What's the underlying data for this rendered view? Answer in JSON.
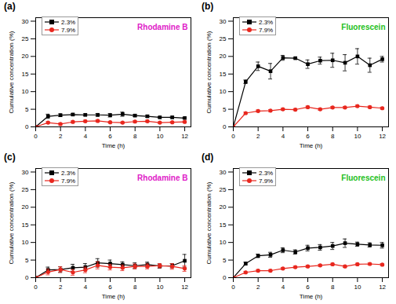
{
  "chart_data": [
    {
      "type": "line",
      "title": "(a)",
      "annotations": [
        {
          "text": "Rhodamine B",
          "color": "#e020c8"
        }
      ],
      "x_label": "Time (h)",
      "y_label": "Cumulative concentration (%)",
      "x": [
        0,
        1,
        2,
        3,
        4,
        5,
        6,
        7,
        8,
        9,
        10,
        11,
        12
      ],
      "xlim": [
        0,
        12.5
      ],
      "xticks": [
        0,
        2,
        4,
        6,
        8,
        10,
        12
      ],
      "ylim": [
        0,
        31
      ],
      "yticks": [
        0,
        5,
        10,
        15,
        20,
        25,
        30
      ],
      "legend": "top-left",
      "series": [
        {
          "name": "2.3%",
          "color": "#000000",
          "marker": "square",
          "values": [
            0,
            3.0,
            3.3,
            3.5,
            3.4,
            3.4,
            3.3,
            3.6,
            3.2,
            3.0,
            2.7,
            2.7,
            2.5
          ],
          "errors": [
            0,
            0.6,
            0.4,
            0.3,
            0.3,
            0.4,
            0.5,
            0.6,
            0.3,
            0.3,
            0.2,
            0.3,
            0.2
          ]
        },
        {
          "name": "7.9%",
          "color": "#e8271e",
          "marker": "circle",
          "values": [
            0,
            1.2,
            0.8,
            1.4,
            1.6,
            1.7,
            1.3,
            1.2,
            1.5,
            1.6,
            1.2,
            1.3,
            1.4
          ],
          "errors": [
            0,
            0.3,
            0.3,
            0.3,
            0.3,
            0.3,
            0.2,
            0.2,
            0.3,
            0.3,
            0.2,
            0.2,
            0.2
          ]
        }
      ]
    },
    {
      "type": "line",
      "title": "(b)",
      "annotations": [
        {
          "text": "Fluorescein",
          "color": "#22c020"
        }
      ],
      "x_label": "Time (h)",
      "y_label": "Cumulative concentration (%)",
      "x": [
        0,
        1,
        2,
        3,
        4,
        5,
        6,
        7,
        8,
        9,
        10,
        11,
        12
      ],
      "xlim": [
        0,
        12.5
      ],
      "xticks": [
        0,
        2,
        4,
        6,
        8,
        10,
        12
      ],
      "ylim": [
        0,
        31
      ],
      "yticks": [
        0,
        5,
        10,
        15,
        20,
        25,
        30
      ],
      "legend": "top-left",
      "series": [
        {
          "name": "2.3%",
          "color": "#000000",
          "marker": "square",
          "values": [
            0,
            12.8,
            17.2,
            15.8,
            19.6,
            19.5,
            17.8,
            18.8,
            18.9,
            18.2,
            20.0,
            17.5,
            19.2
          ],
          "errors": [
            0,
            0.5,
            1.2,
            2.2,
            0.7,
            0.2,
            1.2,
            1.0,
            2.0,
            2.3,
            2.2,
            2.0,
            0.8
          ]
        },
        {
          "name": "7.9%",
          "color": "#e8271e",
          "marker": "circle",
          "values": [
            0,
            3.9,
            4.5,
            4.6,
            5.0,
            4.9,
            5.6,
            5.0,
            5.5,
            5.5,
            5.9,
            5.6,
            5.3
          ],
          "errors": [
            0,
            0.3,
            0.3,
            0.3,
            0.3,
            0.3,
            0.3,
            0.3,
            0.3,
            0.3,
            0.3,
            0.3,
            0.3
          ]
        }
      ]
    },
    {
      "type": "line",
      "title": "(c)",
      "annotations": [
        {
          "text": "Rhodamine B",
          "color": "#e020c8"
        }
      ],
      "x_label": "Time (h)",
      "y_label": "Cumulative concentration (%)",
      "x": [
        0,
        1,
        2,
        3,
        4,
        5,
        6,
        7,
        8,
        9,
        10,
        11,
        12
      ],
      "xlim": [
        0,
        12.5
      ],
      "xticks": [
        0,
        2,
        4,
        6,
        8,
        10,
        12
      ],
      "ylim": [
        0,
        31
      ],
      "yticks": [
        0,
        5,
        10,
        15,
        20,
        25,
        30
      ],
      "legend": "top-left",
      "series": [
        {
          "name": "2.3%",
          "color": "#000000",
          "marker": "square",
          "values": [
            0,
            2.2,
            2.3,
            2.8,
            3.0,
            4.2,
            4.0,
            3.7,
            3.4,
            3.7,
            3.3,
            3.4,
            4.8
          ],
          "errors": [
            0,
            0.8,
            0.8,
            1.0,
            1.0,
            1.2,
            1.0,
            0.8,
            0.8,
            0.7,
            0.6,
            0.6,
            1.8
          ]
        },
        {
          "name": "7.9%",
          "color": "#e8271e",
          "marker": "circle",
          "values": [
            0,
            1.6,
            2.3,
            1.5,
            2.2,
            3.5,
            3.0,
            2.8,
            3.2,
            3.2,
            3.4,
            3.2,
            2.6
          ],
          "errors": [
            0,
            0.8,
            0.8,
            0.8,
            0.8,
            1.0,
            0.8,
            0.8,
            0.7,
            0.7,
            0.6,
            0.8,
            0.8
          ]
        }
      ]
    },
    {
      "type": "line",
      "title": "(d)",
      "annotations": [
        {
          "text": "Fluorescein",
          "color": "#22c020"
        }
      ],
      "x_label": "Time (h)",
      "y_label": "Cumulative concentration (%)",
      "x": [
        0,
        1,
        2,
        3,
        4,
        5,
        6,
        7,
        8,
        9,
        10,
        11,
        12
      ],
      "xlim": [
        0,
        12.5
      ],
      "xticks": [
        0,
        2,
        4,
        6,
        8,
        10,
        12
      ],
      "ylim": [
        0,
        31
      ],
      "yticks": [
        0,
        5,
        10,
        15,
        20,
        25,
        30
      ],
      "legend": "top-left",
      "series": [
        {
          "name": "2.3%",
          "color": "#000000",
          "marker": "square",
          "values": [
            0,
            4.0,
            6.2,
            6.5,
            7.8,
            7.3,
            8.4,
            8.6,
            9.0,
            9.8,
            9.5,
            9.3,
            9.2
          ],
          "errors": [
            0,
            0.4,
            0.5,
            0.7,
            0.7,
            0.6,
            0.8,
            0.8,
            1.0,
            1.2,
            0.6,
            0.6,
            0.8
          ]
        },
        {
          "name": "7.9%",
          "color": "#e8271e",
          "marker": "circle",
          "values": [
            0,
            1.5,
            2.0,
            2.0,
            2.6,
            3.0,
            3.2,
            3.5,
            3.8,
            3.2,
            3.8,
            3.9,
            3.7
          ],
          "errors": [
            0,
            0.3,
            0.3,
            0.3,
            0.3,
            0.3,
            0.3,
            0.3,
            0.3,
            0.3,
            0.3,
            0.3,
            0.3
          ]
        }
      ]
    }
  ]
}
